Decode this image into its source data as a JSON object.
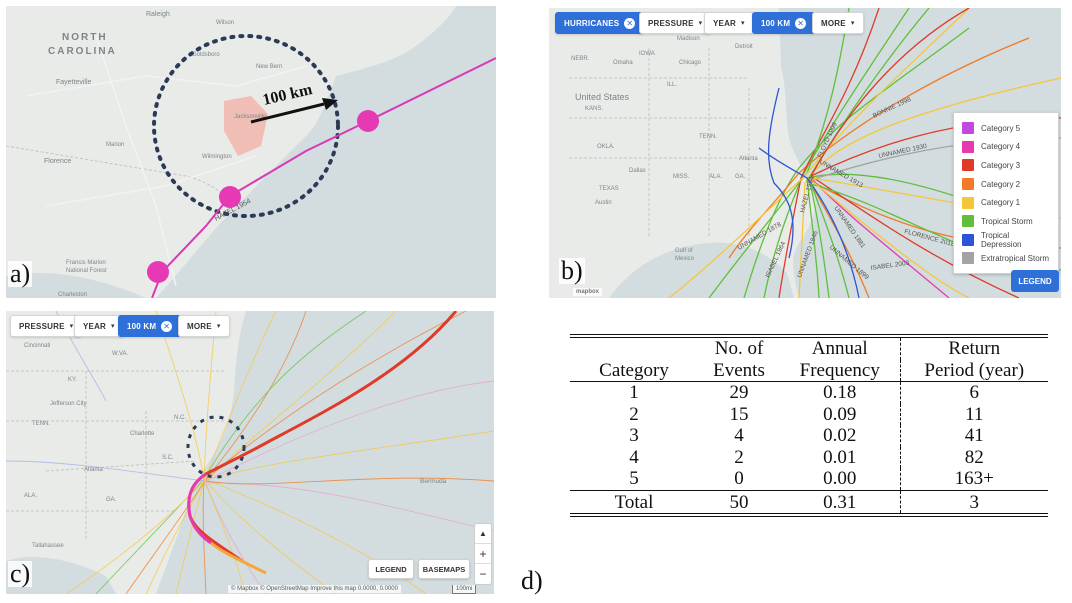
{
  "panel_a": {
    "letter": "a)",
    "labels": {
      "state": "NORTH\nCAROLINA",
      "raleigh": "Raleigh",
      "fayetteville": "Fayetteville",
      "goldsboro": "Goldsboro",
      "new_bern": "New Bern",
      "jacksonville": "Jacksonville",
      "wilmington": "Wilmington",
      "florence": "Florence",
      "marion": "Marion",
      "francis_marion": "Francis Marion\nNational Forest",
      "wilson": "Wilson",
      "charleston": "Charleston"
    },
    "radius_label": "100 km",
    "track_label": "HAZEL 1954",
    "colors": {
      "track": "#d63ab6",
      "point": "#e63ab4",
      "circle": "#2b3a56"
    }
  },
  "panel_b": {
    "letter": "b)",
    "chips": [
      {
        "label": "HURRICANES",
        "active": true,
        "close": "✕"
      },
      {
        "label": "PRESSURE",
        "active": false,
        "chev": "▾"
      },
      {
        "label": "YEAR",
        "active": false,
        "chev": "▾"
      },
      {
        "label": "100 KM",
        "active": true,
        "close": "✕"
      },
      {
        "label": "MORE",
        "active": false,
        "chev": "▾"
      }
    ],
    "map_labels": {
      "us": "United States",
      "nebr": "NEBR.",
      "omaha": "Omaha",
      "iowa": "IOWA",
      "chicago": "Chicago",
      "kans": "KANS.",
      "okla": "OKLA.",
      "tenn": "TENN.",
      "dallas": "Dallas",
      "texas": "TEXAS",
      "austin": "Austin",
      "miss": "MISS.",
      "ala": "ALA.",
      "ga": "GA.",
      "atlanta": "Atlanta",
      "gulf": "Gulf of\nMexico",
      "detroit": "Detroit",
      "madison": "Madison",
      "ill": "ILL."
    },
    "storm_labels": [
      "FLOYD 1999",
      "BONNIE 1998",
      "UNNAMED 1930",
      "UNNAMED 1913",
      "HAZEL 1954",
      "UNNAMED 1881",
      "FLORENCE 2018",
      "UNNAMED 1878",
      "UNNAMED 1899",
      "ISABEL 1964",
      "ISABEL 2003",
      "UNNAMED 1846"
    ],
    "legend": [
      {
        "label": "Category 5",
        "color": "#c149e0"
      },
      {
        "label": "Category 4",
        "color": "#e83ab0"
      },
      {
        "label": "Category 3",
        "color": "#e03a2a"
      },
      {
        "label": "Category 2",
        "color": "#f07a26"
      },
      {
        "label": "Category 1",
        "color": "#f6c63a"
      },
      {
        "label": "Tropical Storm",
        "color": "#5fbf3a"
      },
      {
        "label": "Tropical Depression",
        "color": "#2b55d6"
      },
      {
        "label": "Extratropical Storm",
        "color": "#a3a3a3"
      }
    ],
    "legend_button": "LEGEND",
    "mapbox": "mapbox"
  },
  "panel_c": {
    "letter": "c)",
    "chips": [
      {
        "label": "PRESSURE",
        "active": false,
        "chev": "▾"
      },
      {
        "label": "YEAR",
        "active": false,
        "chev": "▾"
      },
      {
        "label": "100 KM",
        "active": true,
        "close": "✕"
      },
      {
        "label": "MORE",
        "active": false,
        "chev": "▾"
      }
    ],
    "map_labels": {
      "cincinnati": "Cincinnati",
      "wva": "W.VA.",
      "ky": "KY.",
      "jefferson": "Jefferson City",
      "tenn": "TENN.",
      "charlotte": "Charlotte",
      "nc": "N.C.",
      "sc": "S.C.",
      "atlanta": "Atlanta",
      "ala": "ALA.",
      "ga": "GA.",
      "tallahassee": "Tallahassee",
      "bermuda": "Bermuda"
    },
    "legend_button": "LEGEND",
    "basemaps_button": "BASEMAPS",
    "zoom": {
      "compass": "▲",
      "plus": "+",
      "minus": "−"
    },
    "attribution": "© Mapbox © OpenStreetMap  Improve this map   0.0000, 0.0000",
    "scale": "100mi"
  },
  "panel_d": {
    "letter": "d)",
    "headers": {
      "category": "Category",
      "events": [
        "No. of",
        "Events"
      ],
      "frequency": [
        "Annual",
        "Frequency"
      ],
      "return": [
        "Return",
        "Period (year)"
      ]
    },
    "rows": [
      {
        "category": "1",
        "events": "29",
        "frequency": "0.18",
        "return": "6"
      },
      {
        "category": "2",
        "events": "15",
        "frequency": "0.09",
        "return": "11"
      },
      {
        "category": "3",
        "events": "4",
        "frequency": "0.02",
        "return": "41"
      },
      {
        "category": "4",
        "events": "2",
        "frequency": "0.01",
        "return": "82"
      },
      {
        "category": "5",
        "events": "0",
        "frequency": "0.00",
        "return": "163+"
      }
    ],
    "total": {
      "category": "Total",
      "events": "50",
      "frequency": "0.31",
      "return": "3"
    }
  }
}
